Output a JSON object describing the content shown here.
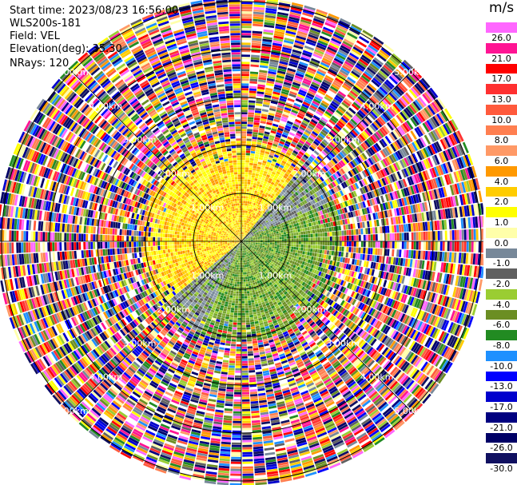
{
  "info": {
    "start_time": "Start time: 2023/08/23 16:56:00",
    "instrument": "WLS200s-181",
    "field": "Field: VEL",
    "elevation": "Elevation(deg): 35.30",
    "nrays": "NRays: 120"
  },
  "colorbar": {
    "unit": "m/s",
    "colors_top_to_bottom": [
      "#ff66ff",
      "#ff1493",
      "#ff0000",
      "#ff3030",
      "#ff5a3c",
      "#ff7f50",
      "#ff9966",
      "#ff9900",
      "#ffcc00",
      "#ffff00",
      "#ffffaa",
      "#778899",
      "#606060",
      "#9acd32",
      "#6b8e23",
      "#228b22",
      "#1e90ff",
      "#0000ff",
      "#0000cd",
      "#000080",
      "#000066",
      "#101060"
    ],
    "labels": [
      "26.0",
      "21.0",
      "17.0",
      "13.0",
      "10.0",
      "8.0",
      "6.0",
      "4.0",
      "2.0",
      "1.0",
      "0.0",
      "-1.0",
      "-2.0",
      "-4.0",
      "-6.0",
      "-8.0",
      "-10.0",
      "-13.0",
      "-17.0",
      "-21.0",
      "-26.0",
      "-30.0"
    ]
  },
  "chart_data": {
    "type": "heatmap",
    "projection": "ppi-polar",
    "field": "VEL",
    "unit": "m/s",
    "n_rays": 120,
    "elevation_deg": 35.3,
    "range_rings_km": [
      1.0,
      2.0,
      3.0,
      4.0,
      5.0
    ],
    "ring_labels": [
      "1.00km",
      "2.00km",
      "3.00km",
      "4.00km",
      "5.00km"
    ],
    "color_scale": [
      26.0,
      21.0,
      17.0,
      13.0,
      10.0,
      8.0,
      6.0,
      4.0,
      2.0,
      1.0,
      0.0,
      -1.0,
      -2.0,
      -4.0,
      -6.0,
      -8.0,
      -10.0,
      -13.0,
      -17.0,
      -21.0,
      -26.0,
      -30.0
    ],
    "regions": {
      "near_positive_sector": "west / north-west, approx 2 to 6 m/s (yellow-orange)",
      "near_negative_sector": "south-east, approx -2 to -6 m/s (green)",
      "near_zero_band": "north-east and south-west, approx -1 to 1 m/s (grey)",
      "outer_noise": "beyond about 2 km, random values over the full scale"
    }
  }
}
